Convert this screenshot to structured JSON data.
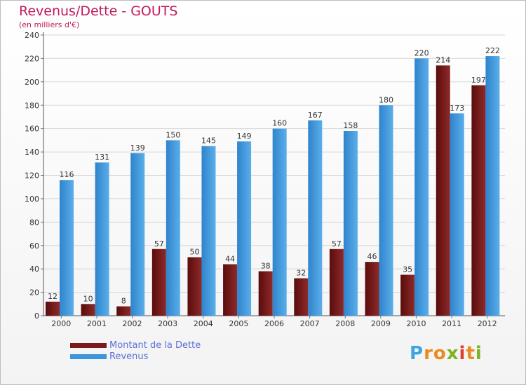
{
  "header": {
    "title": "Revenus/Dette - GOUTS",
    "subtitle": "(en milliers d'€)"
  },
  "chart_data": {
    "type": "bar",
    "categories": [
      "2000",
      "2001",
      "2002",
      "2003",
      "2004",
      "2005",
      "2006",
      "2007",
      "2008",
      "2009",
      "2010",
      "2011",
      "2012"
    ],
    "series": [
      {
        "name": "Montant de la Dette",
        "values": [
          12,
          10,
          8,
          57,
          50,
          44,
          38,
          32,
          57,
          46,
          35,
          214,
          197
        ],
        "color": "#7b1a1a"
      },
      {
        "name": "Revenus",
        "values": [
          116,
          131,
          139,
          150,
          145,
          149,
          160,
          167,
          158,
          180,
          220,
          173,
          222
        ],
        "color": "#3d95db"
      }
    ],
    "ylim": [
      0,
      240
    ],
    "yticks": [
      0,
      20,
      40,
      60,
      80,
      100,
      120,
      140,
      160,
      180,
      200,
      220,
      240
    ],
    "grid": true,
    "legend_position": "bottom-left"
  },
  "legend": {
    "items": [
      {
        "label": "Montant de la Dette",
        "color": "#7b1a1a"
      },
      {
        "label": "Revenus",
        "color": "#3d95db"
      }
    ]
  },
  "logo": {
    "letters": [
      "P",
      "r",
      "o",
      "x",
      "i",
      "t",
      "i"
    ],
    "colors": [
      "#3da5e0",
      "#e98b1e",
      "#e98b1e",
      "#7ab51d",
      "#e03c31",
      "#e98b1e",
      "#7ab51d"
    ]
  }
}
